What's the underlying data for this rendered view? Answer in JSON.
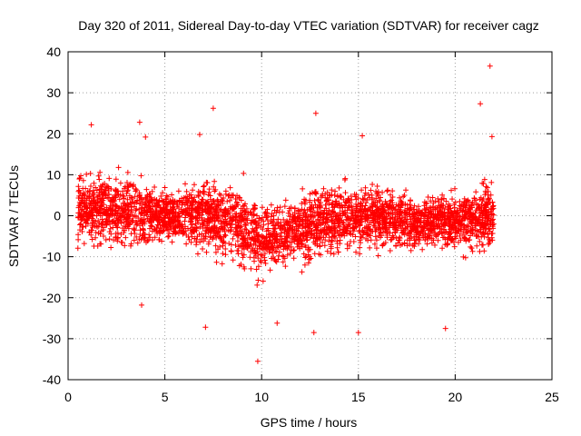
{
  "chart_data": {
    "type": "scatter",
    "title": "Day 320 of 2011, Sidereal Day-to-day VTEC variation (SDTVAR) for receiver cagz",
    "xlabel": "GPS time / hours",
    "ylabel": "SDTVAR / TECUs",
    "xlim": [
      0,
      25
    ],
    "ylim": [
      -40,
      40
    ],
    "xticks": [
      0,
      5,
      10,
      15,
      20,
      25
    ],
    "yticks": [
      -40,
      -30,
      -20,
      -10,
      0,
      10,
      20,
      30,
      40
    ],
    "grid": true,
    "marker": "+",
    "marker_color": "#ff0000",
    "series": [
      {
        "name": "SDTVAR",
        "x_range": [
          0.5,
          22.0
        ],
        "description_points": "dense scatter",
        "envelope": [
          {
            "x": 0.5,
            "center": 2,
            "spread": 8
          },
          {
            "x": 2,
            "center": 1,
            "spread": 9
          },
          {
            "x": 3.5,
            "center": 1,
            "spread": 10
          },
          {
            "x": 5,
            "center": 0,
            "spread": 6
          },
          {
            "x": 7,
            "center": 0,
            "spread": 8
          },
          {
            "x": 9,
            "center": -3,
            "spread": 10
          },
          {
            "x": 10,
            "center": -6,
            "spread": 10
          },
          {
            "x": 11,
            "center": -5,
            "spread": 8
          },
          {
            "x": 12.5,
            "center": -2,
            "spread": 9
          },
          {
            "x": 14,
            "center": -1,
            "spread": 9
          },
          {
            "x": 16,
            "center": 0,
            "spread": 8
          },
          {
            "x": 18,
            "center": -2,
            "spread": 6
          },
          {
            "x": 20,
            "center": -1,
            "spread": 7
          },
          {
            "x": 22,
            "center": 0,
            "spread": 9
          }
        ],
        "outliers": [
          {
            "x": 21.8,
            "y": 36.5
          },
          {
            "x": 21.3,
            "y": 27.3
          },
          {
            "x": 7.5,
            "y": 26.2
          },
          {
            "x": 12.8,
            "y": 25.0
          },
          {
            "x": 3.7,
            "y": 22.8
          },
          {
            "x": 1.2,
            "y": 22.2
          },
          {
            "x": 4.0,
            "y": 19.2
          },
          {
            "x": 6.8,
            "y": 19.8
          },
          {
            "x": 15.2,
            "y": 19.5
          },
          {
            "x": 21.9,
            "y": 19.3
          },
          {
            "x": 9.8,
            "y": -35.5
          },
          {
            "x": 12.7,
            "y": -28.5
          },
          {
            "x": 15.0,
            "y": -28.5
          },
          {
            "x": 19.5,
            "y": -27.5
          },
          {
            "x": 7.1,
            "y": -27.2
          },
          {
            "x": 3.8,
            "y": -21.8
          },
          {
            "x": 10.8,
            "y": -26.2
          }
        ]
      }
    ]
  }
}
